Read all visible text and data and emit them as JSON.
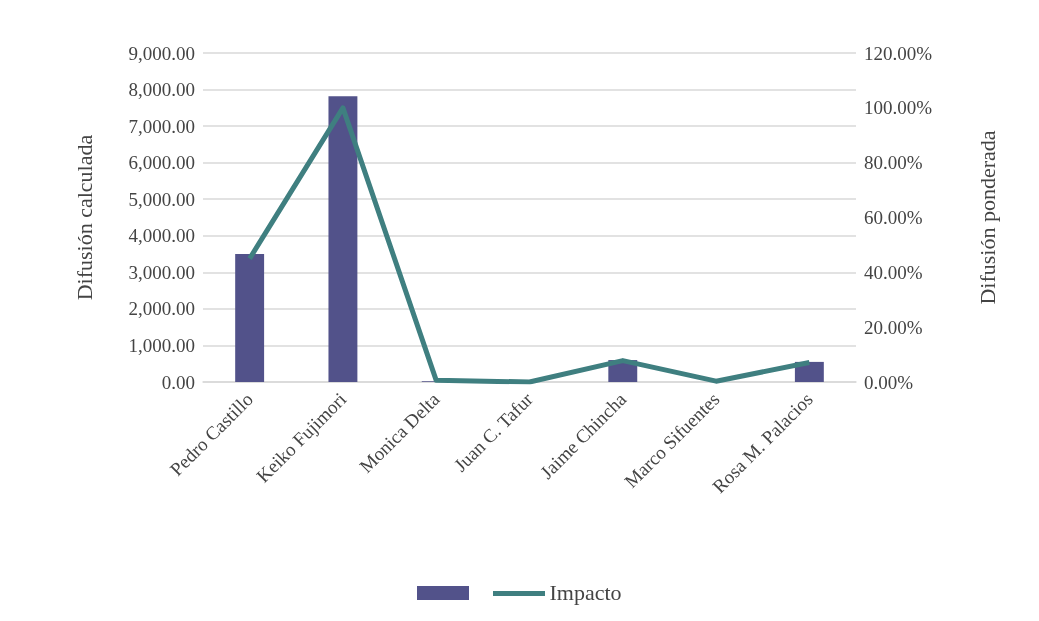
{
  "chart_data": {
    "type": "bar",
    "categories": [
      "Pedro Castillo",
      "Keiko Fujimori",
      "Monica Delta",
      "Juan C. Tafur",
      "Jaime Chincha",
      "Marco Sifuentes",
      "Rosa M. Palacios"
    ],
    "series": [
      {
        "color": "#52528a",
        "values": [
          3500,
          7820,
          20,
          0,
          600,
          0,
          550
        ]
      },
      {
        "type": "line",
        "name": "Impacto",
        "axis": "y2",
        "color": "#3f7f80",
        "values": [
          45,
          100,
          0.6,
          0,
          7.8,
          0.3,
          7.1
        ]
      }
    ],
    "ylabel": "Difusión calculada",
    "y2label": "Difusión ponderada",
    "ylim": [
      0,
      9000
    ],
    "yticks": [
      {
        "value": 0,
        "label": "0.00"
      },
      {
        "value": 1000,
        "label": "1,000.00"
      },
      {
        "value": 2000,
        "label": "2,000.00"
      },
      {
        "value": 3000,
        "label": "3,000.00"
      },
      {
        "value": 4000,
        "label": "4,000.00"
      },
      {
        "value": 5000,
        "label": "5,000.00"
      },
      {
        "value": 6000,
        "label": "6,000.00"
      },
      {
        "value": 7000,
        "label": "7,000.00"
      },
      {
        "value": 8000,
        "label": "8,000.00"
      },
      {
        "value": 9000,
        "label": "9,000.00"
      }
    ],
    "y2lim": [
      0,
      120
    ],
    "y2ticks": [
      {
        "value": 0,
        "label": "0.00%"
      },
      {
        "value": 20,
        "label": "20.00%"
      },
      {
        "value": 40,
        "label": "40.00%"
      },
      {
        "value": 60,
        "label": "60.00%"
      },
      {
        "value": 80,
        "label": "80.00%"
      },
      {
        "value": 100,
        "label": "100.00%"
      },
      {
        "value": 120,
        "label": "120.00%"
      }
    ],
    "grid": "y",
    "legend": "bottom",
    "marker": "none"
  }
}
